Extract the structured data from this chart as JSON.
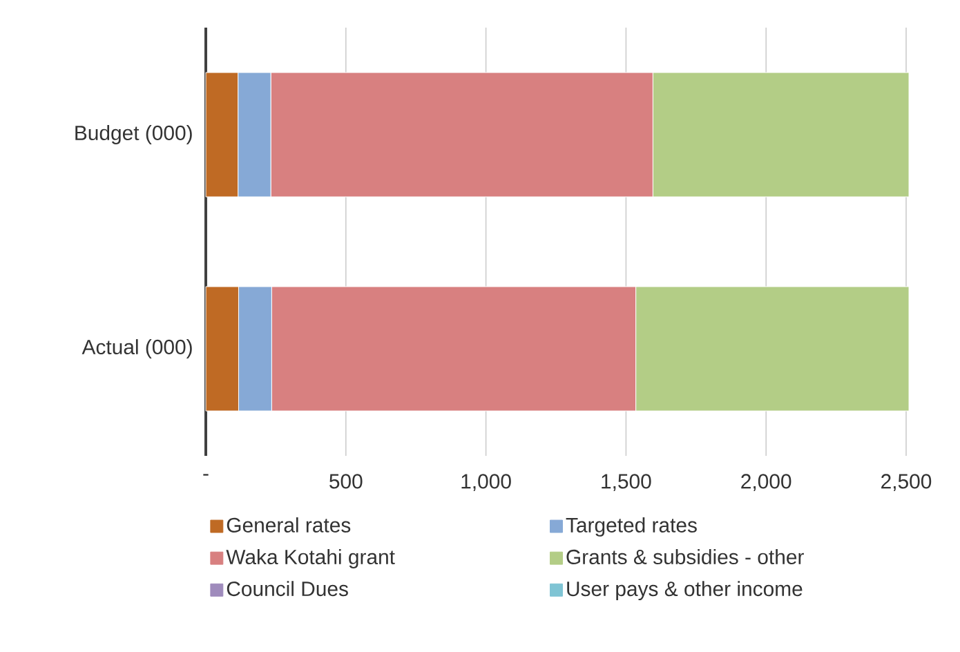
{
  "chart_data": {
    "type": "bar",
    "orientation": "horizontal",
    "stacked": true,
    "categories": [
      "Budget (000)",
      "Actual (000)"
    ],
    "series": [
      {
        "name": "General rates",
        "color": "#bf6a24",
        "values": [
          115,
          117
        ]
      },
      {
        "name": "Targeted rates",
        "color": "#86a9d6",
        "values": [
          117,
          118
        ]
      },
      {
        "name": "Waka Kotahi grant",
        "color": "#d88080",
        "values": [
          1364,
          1300
        ]
      },
      {
        "name": "Grants & subsidies - other",
        "color": "#b3cd86",
        "values": [
          914,
          975
        ]
      },
      {
        "name": "Council Dues",
        "color": "#9f8bbc",
        "values": [
          0,
          0
        ]
      },
      {
        "name": "User pays & other income",
        "color": "#7fc4d4",
        "values": [
          0,
          0
        ]
      }
    ],
    "xlim": [
      0,
      2500
    ],
    "xticks": [
      {
        "value": 0,
        "label": "-"
      },
      500,
      {
        "value": 1000,
        "label": "1,000"
      },
      {
        "value": 1500,
        "label": "1,500"
      },
      {
        "value": 2000,
        "label": "2,000"
      },
      {
        "value": 2500,
        "label": "2,500"
      }
    ],
    "grid": "x",
    "legend": "bottom"
  }
}
